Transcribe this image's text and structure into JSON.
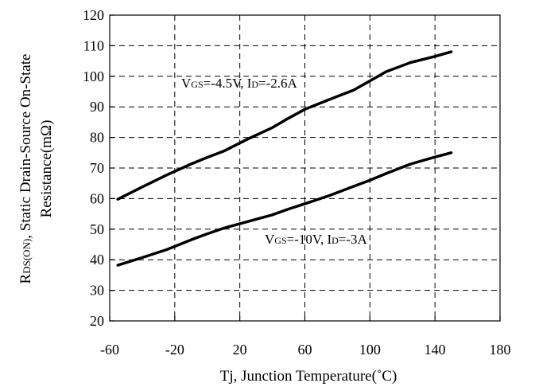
{
  "chart_data": {
    "type": "line",
    "xlabel": "Tj, Junction Temperature(˚C)",
    "ylabel_line1": "R",
    "ylabel_line1_sub": "DS(ON)",
    "ylabel_line1_rest": ", Static Drain-Source On-State",
    "ylabel_line2": "Resistance(mΩ)",
    "xlim": [
      -60,
      180
    ],
    "ylim": [
      20,
      120
    ],
    "xticks": [
      -60,
      -20,
      20,
      60,
      100,
      140,
      180
    ],
    "yticks": [
      20,
      30,
      40,
      50,
      60,
      70,
      80,
      90,
      100,
      110,
      120
    ],
    "grid": true,
    "series": [
      {
        "label_parts": [
          "V",
          "GS",
          "=-4.5V, I",
          "D",
          "=-2.6A"
        ],
        "x": [
          -55,
          -40,
          -25,
          -10,
          0,
          10,
          25,
          40,
          50,
          60,
          75,
          90,
          100,
          110,
          125,
          140,
          150
        ],
        "y": [
          59.8,
          63.8,
          67.7,
          71.3,
          73.5,
          75.5,
          79.5,
          83.2,
          86.3,
          89.2,
          92.4,
          95.5,
          98.5,
          101.5,
          104.5,
          106.5,
          108.0
        ]
      },
      {
        "label_parts": [
          "V",
          "GS",
          "=-10V, I",
          "D",
          "=-3A"
        ],
        "x": [
          -55,
          -40,
          -25,
          -10,
          0,
          10,
          25,
          40,
          50,
          60,
          75,
          90,
          100,
          110,
          125,
          140,
          150
        ],
        "y": [
          38.2,
          40.7,
          43.3,
          46.5,
          48.5,
          50.3,
          52.5,
          54.7,
          56.6,
          58.3,
          61.0,
          64.0,
          66.0,
          68.2,
          71.3,
          73.6,
          75.0
        ]
      }
    ]
  }
}
